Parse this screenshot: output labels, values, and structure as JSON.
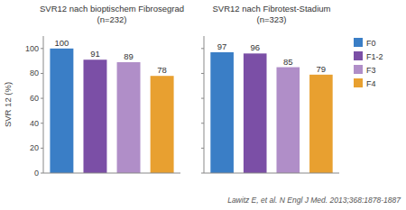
{
  "chart_data": [
    {
      "type": "bar",
      "title": "SVR12 nach bioptischem Fibrosegrad",
      "subtitle": "(n=232)",
      "categories": [
        "F0",
        "F1-2",
        "F3",
        "F4"
      ],
      "values": [
        100,
        91,
        89,
        78
      ],
      "colors": [
        "#3A7EC6",
        "#7B4FA6",
        "#B08EC8",
        "#E8A030"
      ],
      "y_label": "SVR 12 (%)",
      "ylim": [
        0,
        110
      ],
      "yticks": [
        0,
        20,
        40,
        60,
        80,
        100
      ],
      "data_labels": true,
      "tick_labels": "y",
      "grid": false,
      "legend": "right"
    },
    {
      "type": "bar",
      "title": "SVR12 nach Fibrotest-Stadium",
      "subtitle": "(n=323)",
      "categories": [
        "F0",
        "F1-2",
        "F3",
        "F4"
      ],
      "values": [
        97,
        96,
        85,
        79
      ],
      "colors": [
        "#3A7EC6",
        "#7B4FA6",
        "#B08EC8",
        "#E8A030"
      ],
      "ylim": [
        0,
        110
      ],
      "yticks": [
        0,
        20,
        40,
        60,
        80,
        100
      ],
      "data_labels": true,
      "tick_labels": false,
      "grid": false,
      "annotations": [
        "Lawitz E, et al. N Engl J Med. 2013;368:1878-1887"
      ]
    }
  ]
}
